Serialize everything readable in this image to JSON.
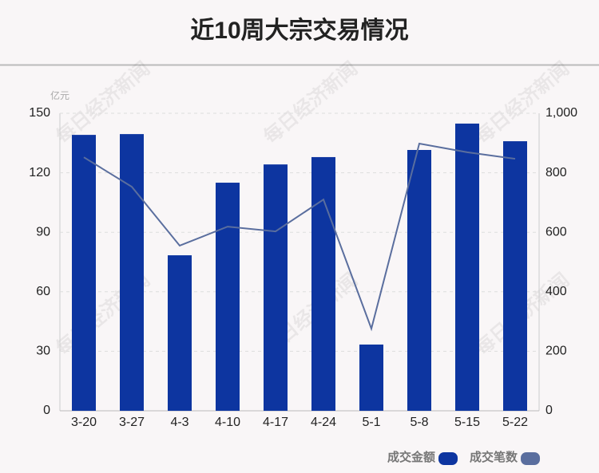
{
  "chart_data": {
    "type": "bar-line",
    "title": "近10周大宗交易情况",
    "y_unit": "亿元",
    "watermark": "每日经济新闻",
    "categories": [
      "3-20",
      "3-27",
      "4-3",
      "4-10",
      "4-17",
      "4-24",
      "5-1",
      "5-8",
      "5-15",
      "5-22"
    ],
    "series": [
      {
        "name": "成交金额",
        "type": "bar",
        "color": "#0d35a0",
        "values": [
          139.1,
          139.5,
          78.4,
          115,
          124.2,
          127.9,
          33.4,
          131.5,
          144.8,
          135.9
        ]
      },
      {
        "name": "成交笔数",
        "type": "line",
        "axis": "y2",
        "color": "#5a6e9e",
        "values": [
          852,
          753,
          555,
          619,
          603,
          710,
          276,
          898,
          869,
          847
        ]
      }
    ],
    "ylim": [
      0,
      150
    ],
    "yticks": [
      0,
      30,
      60,
      90,
      120,
      150
    ],
    "y2lim": [
      0,
      1000
    ],
    "y2ticks": [
      0,
      200,
      400,
      600,
      800,
      {
        "value": 1000,
        "label": "1,000"
      }
    ],
    "grid": true
  }
}
